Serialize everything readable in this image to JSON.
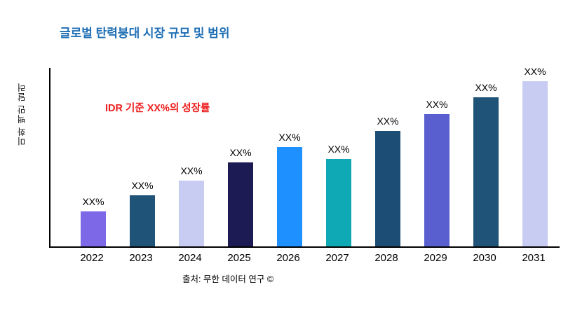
{
  "chart_data": {
    "type": "bar",
    "title": "글로벌 탄력붕대 시장 규모 및 범위",
    "ylabel": "미화 백만 달러",
    "xlabel": "",
    "annotation": "IDR 기준 XX%의 성장률",
    "source": "출처: 무한 데이터 연구 ©",
    "categories": [
      "2022",
      "2023",
      "2024",
      "2025",
      "2026",
      "2027",
      "2028",
      "2029",
      "2030",
      "2031"
    ],
    "values": [
      21,
      31,
      40,
      51,
      60,
      53,
      70,
      80,
      90,
      100
    ],
    "bar_labels": [
      "XX%",
      "XX%",
      "XX%",
      "XX%",
      "XX%",
      "XX%",
      "XX%",
      "XX%",
      "XX%",
      "XX%"
    ],
    "bar_colors": [
      "#7D69E8",
      "#1F5378",
      "#C8CCF2",
      "#1D1B53",
      "#1E90FF",
      "#0FA8B5",
      "#1C4E75",
      "#5A5FCF",
      "#1F5378",
      "#C8CCF2"
    ],
    "ylim": [
      0,
      108
    ],
    "grid": false,
    "legend": false,
    "colors": {
      "title": "#1F6FB5",
      "annotation": "#EE1C1C",
      "axis": "#000000"
    }
  }
}
